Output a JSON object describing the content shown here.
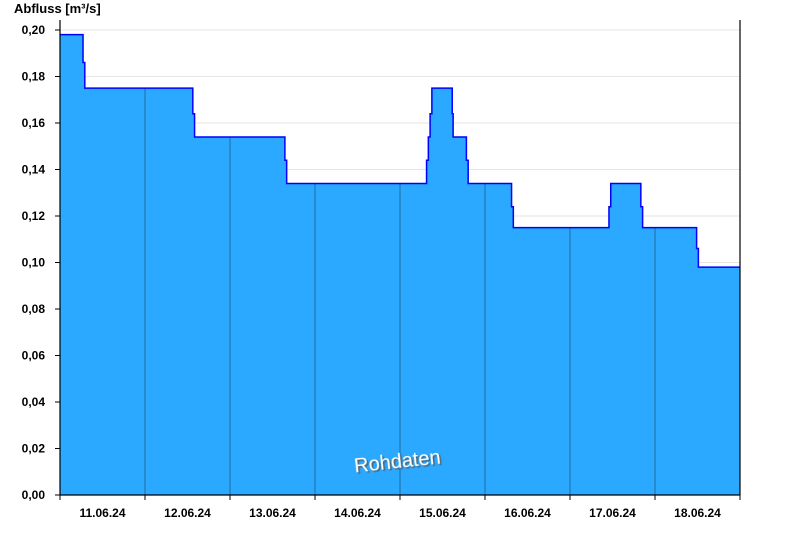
{
  "chart_data": {
    "type": "area",
    "step": true,
    "ylabel": "Abfluss [m³/s]",
    "ylim": [
      0,
      0.2
    ],
    "yticks": [
      "0,00",
      "0,02",
      "0,04",
      "0,06",
      "0,08",
      "0,10",
      "0,12",
      "0,14",
      "0,16",
      "0,18",
      "0,20"
    ],
    "xlim": [
      "2024-06-11T00:00",
      "2024-06-19T00:00"
    ],
    "xticks": [
      "11.06.24",
      "12.06.24",
      "13.06.24",
      "14.06.24",
      "15.06.24",
      "16.06.24",
      "17.06.24",
      "18.06.24"
    ],
    "grid": true,
    "watermark": "Rohdaten",
    "colors": {
      "fill": "#2ba8ff",
      "line": "#0000ff",
      "day_lines": "#1f6d9e",
      "grid": "#e6e6e6"
    },
    "series": [
      {
        "points": [
          [
            "2024-06-11T00:00",
            0.198
          ],
          [
            "2024-06-11T06:30",
            0.186
          ],
          [
            "2024-06-11T07:00",
            0.175
          ],
          [
            "2024-06-12T13:30",
            0.164
          ],
          [
            "2024-06-12T14:00",
            0.154
          ],
          [
            "2024-06-13T15:30",
            0.144
          ],
          [
            "2024-06-13T16:00",
            0.134
          ],
          [
            "2024-06-15T07:30",
            0.144
          ],
          [
            "2024-06-15T08:00",
            0.154
          ],
          [
            "2024-06-15T08:30",
            0.164
          ],
          [
            "2024-06-15T09:00",
            0.175
          ],
          [
            "2024-06-15T14:45",
            0.164
          ],
          [
            "2024-06-15T15:00",
            0.154
          ],
          [
            "2024-06-15T18:45",
            0.144
          ],
          [
            "2024-06-15T19:15",
            0.134
          ],
          [
            "2024-06-16T07:30",
            0.124
          ],
          [
            "2024-06-16T08:00",
            0.115
          ],
          [
            "2024-06-17T11:00",
            0.124
          ],
          [
            "2024-06-17T11:30",
            0.134
          ],
          [
            "2024-06-17T20:00",
            0.124
          ],
          [
            "2024-06-17T20:30",
            0.115
          ],
          [
            "2024-06-18T11:45",
            0.106
          ],
          [
            "2024-06-18T12:15",
            0.098
          ],
          [
            "2024-06-19T00:00",
            0.098
          ]
        ]
      }
    ]
  }
}
